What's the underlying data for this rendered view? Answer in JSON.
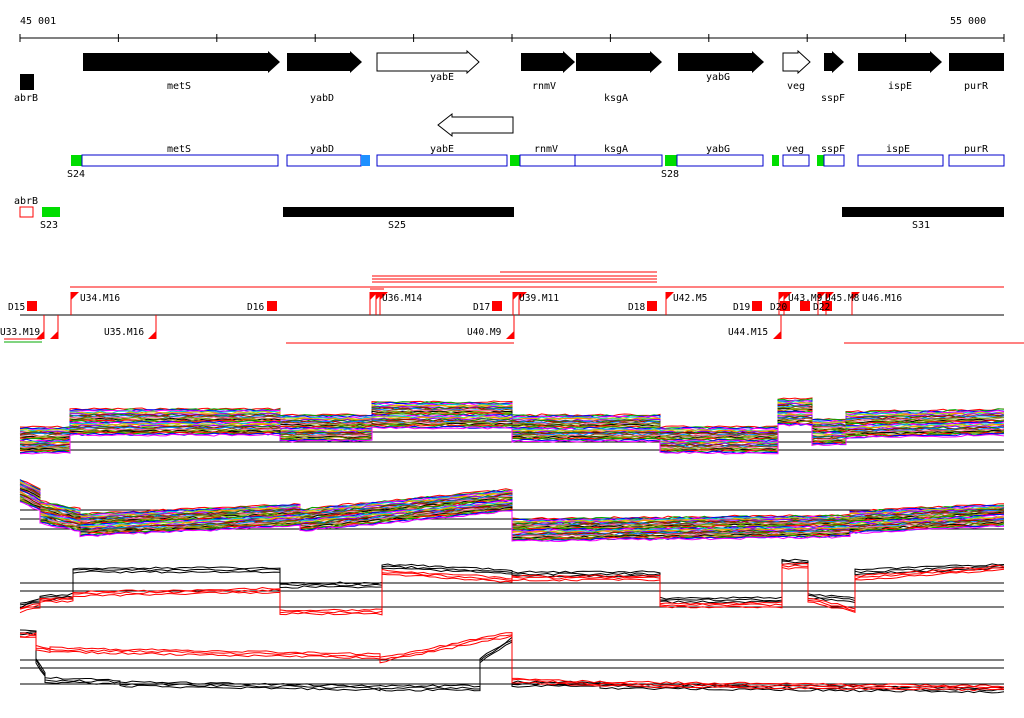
{
  "axis": {
    "start_label": "45 001",
    "end_label": "55 000"
  },
  "genes_forward": [
    {
      "name": "metS",
      "label_row": "upper"
    },
    {
      "name": "yabD",
      "label_row": "lower"
    },
    {
      "name": "yabE",
      "label_row": "upper"
    },
    {
      "name": "rnmV",
      "label_row": "upper"
    },
    {
      "name": "ksgA",
      "label_row": "lower"
    },
    {
      "name": "yabG",
      "label_row": "upper"
    },
    {
      "name": "veg",
      "label_row": "upper"
    },
    {
      "name": "sspF",
      "label_row": "lower"
    },
    {
      "name": "ispE",
      "label_row": "upper"
    },
    {
      "name": "purR",
      "label_row": "upper"
    }
  ],
  "gene_abrB": "abrB",
  "transcript_boxes": [
    "metS",
    "yabD",
    "yabE",
    "rnmV",
    "ksgA",
    "yabG",
    "veg",
    "sspF",
    "ispE",
    "purR"
  ],
  "transcript_sites": [
    "S24",
    "S28"
  ],
  "abrB_label2": "abrB",
  "segments": [
    "S23",
    "S25",
    "S31"
  ],
  "markers_upper": [
    {
      "label": "D15"
    },
    {
      "label": "U34.M16"
    },
    {
      "label": "D16"
    },
    {
      "label": "U36.M14"
    },
    {
      "label": "D17"
    },
    {
      "label": "U39.M11"
    },
    {
      "label": "D18"
    },
    {
      "label": "U42.M5"
    },
    {
      "label": "D19"
    },
    {
      "label": "D20"
    },
    {
      "label": "U43.M9"
    },
    {
      "label": "D22"
    },
    {
      "label": "U45.M8"
    },
    {
      "label": "U46.M16"
    }
  ],
  "markers_lower": [
    {
      "label": "U33.M19"
    },
    {
      "label": "U35.M16"
    },
    {
      "label": "U40.M9"
    },
    {
      "label": "U44.M15"
    }
  ],
  "colors": {
    "gene_fill": "#000000",
    "site_green": "#00dd00",
    "site_blue": "#1e90ff",
    "box_outline": "#0000cc",
    "marker_red": "#ff0000",
    "expression_black": "#000000",
    "expression_red": "#ff0000"
  }
}
